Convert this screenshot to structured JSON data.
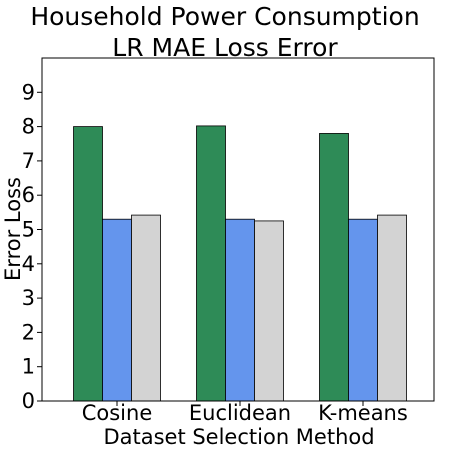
{
  "chart_data": {
    "type": "bar",
    "title": [
      "Household Power Consumption",
      "LR MAE Loss Error"
    ],
    "xlabel": "Dataset Selection Method",
    "ylabel": "Error Loss",
    "categories": [
      "Cosine",
      "Euclidean",
      "K-means"
    ],
    "series": [
      {
        "color": "#2e8b57",
        "values": [
          8.0,
          8.02,
          7.8
        ]
      },
      {
        "color": "#6495ed",
        "values": [
          5.3,
          5.3,
          5.3
        ]
      },
      {
        "color": "#d3d3d3",
        "values": [
          5.42,
          5.25,
          5.42
        ]
      }
    ],
    "ylim": [
      0,
      10
    ],
    "yticks": [
      0,
      1,
      2,
      3,
      4,
      5,
      6,
      7,
      8,
      9
    ],
    "grid": false,
    "legend": "none"
  }
}
